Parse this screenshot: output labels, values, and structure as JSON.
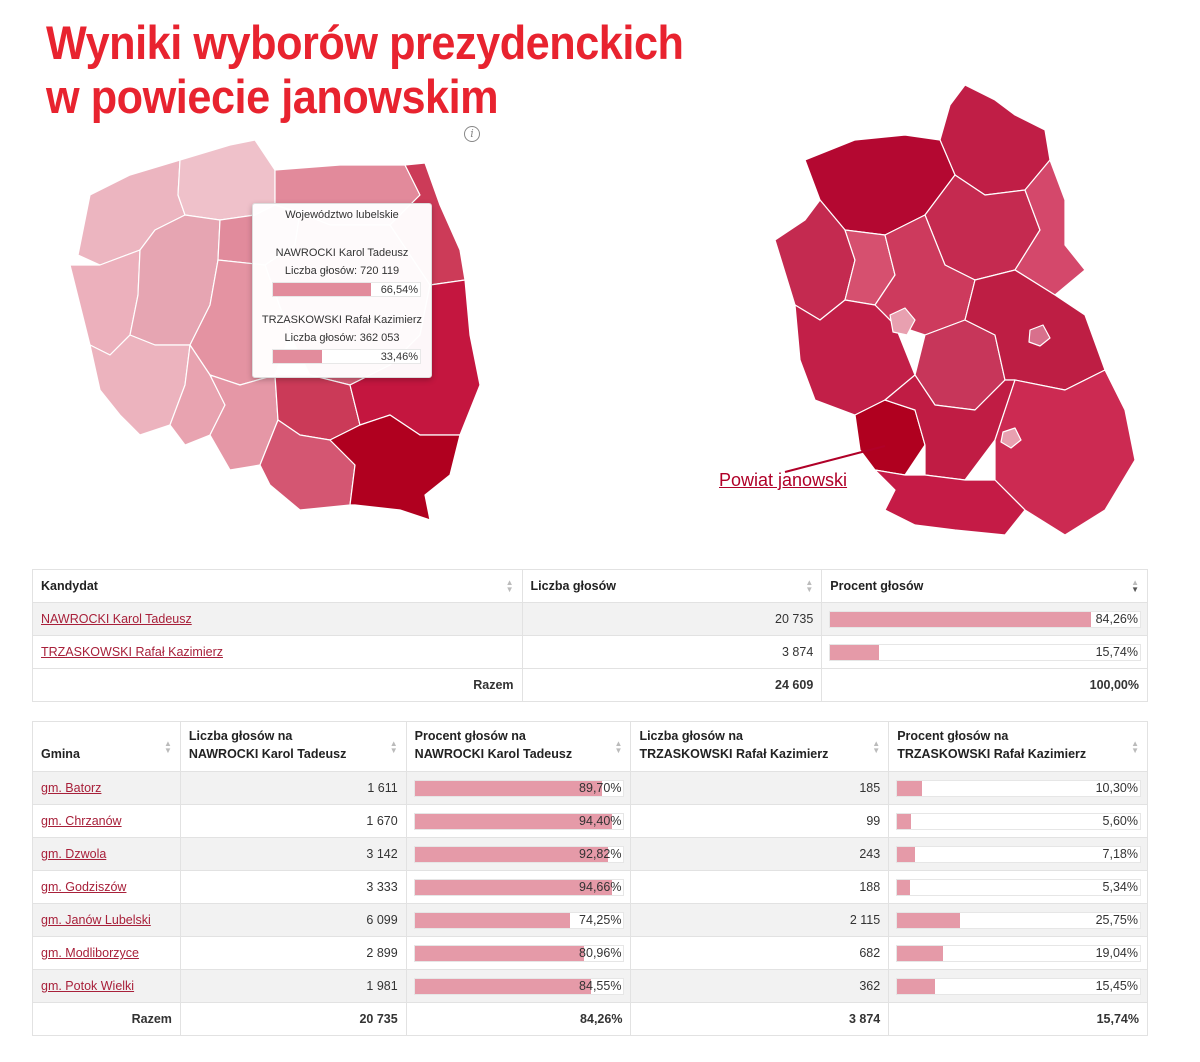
{
  "title_line1": "Wyniki wyborów prezydenckich",
  "title_line2": "w powiecie janowskim",
  "colors": {
    "title": "#e8232f",
    "bar_fill": "#e59aa8",
    "link": "#a8203a",
    "map_dark": "#b00028",
    "map_light": "#e8b4be"
  },
  "tooltip": {
    "region": "Województwo lubelskie",
    "candidates": [
      {
        "name": "NAWROCKI Karol Tadeusz",
        "votes_label": "Liczba głosów: 720 119",
        "percent": 66.54,
        "percent_label": "66,54%"
      },
      {
        "name": "TRZASKOWSKI Rafał Kazimierz",
        "votes_label": "Liczba głosów: 362 053",
        "percent": 33.46,
        "percent_label": "33,46%"
      }
    ]
  },
  "map_label": "Powiat janowski",
  "summary_table": {
    "headers": {
      "candidate": "Kandydat",
      "votes": "Liczba głosów",
      "percent": "Procent głosów"
    },
    "rows": [
      {
        "candidate": "NAWROCKI Karol Tadeusz",
        "votes": "20 735",
        "percent": 84.26,
        "percent_label": "84,26%"
      },
      {
        "candidate": "TRZASKOWSKI Rafał Kazimierz",
        "votes": "3 874",
        "percent": 15.74,
        "percent_label": "15,74%"
      }
    ],
    "total": {
      "label": "Razem",
      "votes": "24 609",
      "percent_label": "100,00%"
    }
  },
  "gmina_table": {
    "headers": {
      "gmina": "Gmina",
      "votes_a_1": "Liczba głosów na",
      "votes_a_2": "NAWROCKI Karol Tadeusz",
      "pct_a_1": "Procent głosów na",
      "pct_a_2": "NAWROCKI Karol Tadeusz",
      "votes_b_1": "Liczba głosów na",
      "votes_b_2": "TRZASKOWSKI Rafał Kazimierz",
      "pct_b_1": "Procent głosów na",
      "pct_b_2": "TRZASKOWSKI Rafał Kazimierz"
    },
    "rows": [
      {
        "gmina": "gm. Batorz",
        "votes_a": "1 611",
        "pct_a": 89.7,
        "pct_a_label": "89,70%",
        "votes_b": "185",
        "pct_b": 10.3,
        "pct_b_label": "10,30%"
      },
      {
        "gmina": "gm. Chrzanów",
        "votes_a": "1 670",
        "pct_a": 94.4,
        "pct_a_label": "94,40%",
        "votes_b": "99",
        "pct_b": 5.6,
        "pct_b_label": "5,60%"
      },
      {
        "gmina": "gm. Dzwola",
        "votes_a": "3 142",
        "pct_a": 92.82,
        "pct_a_label": "92,82%",
        "votes_b": "243",
        "pct_b": 7.18,
        "pct_b_label": "7,18%"
      },
      {
        "gmina": "gm. Godziszów",
        "votes_a": "3 333",
        "pct_a": 94.66,
        "pct_a_label": "94,66%",
        "votes_b": "188",
        "pct_b": 5.34,
        "pct_b_label": "5,34%"
      },
      {
        "gmina": "gm. Janów Lubelski",
        "votes_a": "6 099",
        "pct_a": 74.25,
        "pct_a_label": "74,25%",
        "votes_b": "2 115",
        "pct_b": 25.75,
        "pct_b_label": "25,75%"
      },
      {
        "gmina": "gm. Modliborzyce",
        "votes_a": "2 899",
        "pct_a": 80.96,
        "pct_a_label": "80,96%",
        "votes_b": "682",
        "pct_b": 19.04,
        "pct_b_label": "19,04%"
      },
      {
        "gmina": "gm. Potok Wielki",
        "votes_a": "1 981",
        "pct_a": 84.55,
        "pct_a_label": "84,55%",
        "votes_b": "362",
        "pct_b": 15.45,
        "pct_b_label": "15,45%"
      }
    ],
    "total": {
      "label": "Razem",
      "votes_a": "20 735",
      "pct_a_label": "84,26%",
      "votes_b": "3 874",
      "pct_b_label": "15,74%"
    }
  }
}
